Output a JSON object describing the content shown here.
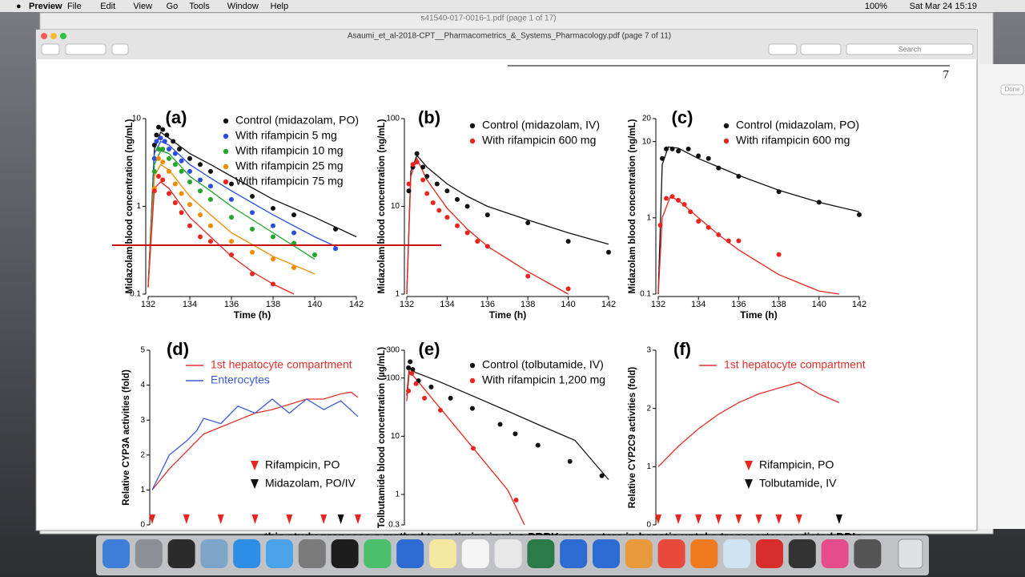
{
  "menu_bar": {
    "app": "Preview",
    "items": [
      "File",
      "Edit",
      "View",
      "Go",
      "Tools",
      "Window",
      "Help"
    ],
    "battery": "100%",
    "clock": "Sat Mar 24  15:19"
  },
  "back_window": {
    "title": "s41540-017-0016-1.pdf (page 1 of 17)"
  },
  "window": {
    "title": "Asaumi_et_al-2018-CPT__Pharmacometrics_&_Systems_Pharmacology.pdf (page 7 of 11)",
    "search": "Search"
  },
  "side_button": "Done",
  "page_number": "7",
  "body_text": "this study proposes a method to optimize in vivo PBPK parameters in hepatic uptake transporter-mediated DDIs",
  "figure": {
    "panels": [
      {
        "label": "(a)",
        "scale": "log",
        "xlim": [
          132,
          142
        ],
        "ylim": [
          0.1,
          10
        ],
        "xticks": [
          132,
          134,
          136,
          138,
          140,
          142
        ],
        "yticks": [
          0.1,
          1,
          10
        ],
        "xlabel": "Time (h)",
        "ylabel": "Midazolam blood concentration (ng/mL)",
        "series": [
          {
            "name": "Control (midazolam, PO)",
            "color": "#111111",
            "marker": "dot",
            "x": [
              132.3,
              132.4,
              132.5,
              132.7,
              132.9,
              133.2,
              133.5,
              134,
              134.5,
              135,
              136,
              137,
              138,
              139,
              141
            ],
            "y": [
              5,
              6.5,
              8,
              7.5,
              6.5,
              5.5,
              4.5,
              3.5,
              3,
              2.5,
              1.8,
              1.3,
              0.95,
              0.8,
              0.55
            ]
          },
          {
            "name": "With rifampicin 5 mg",
            "color": "#2a4de0",
            "marker": "dot",
            "x": [
              132.3,
              132.4,
              132.6,
              132.8,
              133,
              133.3,
              133.6,
              134,
              134.5,
              135,
              136,
              137,
              138,
              139,
              141
            ],
            "y": [
              3.5,
              5.5,
              6,
              5.5,
              4.5,
              4,
              3.3,
              2.5,
              2,
              1.7,
              1.2,
              0.85,
              0.6,
              0.5,
              0.33
            ]
          },
          {
            "name": "With rifampicin 10 mg",
            "color": "#22a52a",
            "marker": "dot",
            "x": [
              132.3,
              132.5,
              132.7,
              133,
              133.3,
              133.6,
              134,
              134.5,
              135,
              136,
              137,
              138,
              139,
              140
            ],
            "y": [
              2.5,
              4.5,
              4.5,
              3.5,
              3,
              2.5,
              1.9,
              1.5,
              1.2,
              0.75,
              0.55,
              0.45,
              0.38,
              0.28
            ]
          },
          {
            "name": "With rifampicin 25 mg",
            "color": "#f08c00",
            "marker": "dot",
            "x": [
              132.3,
              132.5,
              132.7,
              133,
              133.3,
              133.6,
              134,
              134.5,
              135,
              136,
              137,
              138,
              139
            ],
            "y": [
              1.6,
              3.5,
              3.2,
              2.5,
              1.8,
              1.4,
              1.05,
              0.8,
              0.6,
              0.4,
              0.3,
              0.25,
              0.2
            ]
          },
          {
            "name": "With rifampicin 75 mg",
            "color": "#e8261f",
            "marker": "dot",
            "x": [
              132.3,
              132.5,
              132.7,
              133,
              133.3,
              133.6,
              134,
              134.5,
              135,
              136,
              137,
              138
            ],
            "y": [
              1.5,
              2.2,
              2,
              1.4,
              1.1,
              0.85,
              0.6,
              0.45,
              0.4,
              0.28,
              0.17,
              0.13
            ]
          }
        ],
        "fits": [
          {
            "color": "#111111",
            "x": [
              132,
              132.3,
              132.6,
              133,
              134,
              135,
              136,
              138,
              140,
              142
            ],
            "y": [
              0.12,
              4.5,
              7,
              6,
              4,
              3,
              2.2,
              1.2,
              0.75,
              0.45
            ]
          },
          {
            "color": "#2a4de0",
            "x": [
              132,
              132.3,
              132.6,
              133,
              134,
              135,
              136,
              138,
              140,
              141
            ],
            "y": [
              0.12,
              4,
              5.5,
              5,
              3,
              2.1,
              1.5,
              0.8,
              0.45,
              0.35
            ]
          },
          {
            "color": "#22a52a",
            "x": [
              132,
              132.3,
              132.6,
              133,
              134,
              135,
              136,
              138,
              140
            ],
            "y": [
              0.12,
              3,
              4.3,
              4,
              2.2,
              1.5,
              1,
              0.5,
              0.25
            ]
          },
          {
            "color": "#f08c00",
            "x": [
              132,
              132.3,
              132.6,
              133,
              134,
              135,
              136,
              138,
              140
            ],
            "y": [
              0.12,
              2.2,
              3,
              2.6,
              1.3,
              0.8,
              0.5,
              0.27,
              0.17
            ]
          },
          {
            "color": "#e8261f",
            "x": [
              132,
              132.3,
              132.6,
              133,
              134,
              135,
              136,
              137,
              138,
              139
            ],
            "y": [
              0.12,
              1.6,
              1.9,
              1.6,
              0.75,
              0.45,
              0.27,
              0.18,
              0.13,
              0.1
            ]
          }
        ]
      },
      {
        "label": "(b)",
        "scale": "log",
        "xlim": [
          132,
          142
        ],
        "ylim": [
          1,
          100
        ],
        "xticks": [
          132,
          134,
          136,
          138,
          140,
          142
        ],
        "yticks": [
          1,
          10,
          100
        ],
        "xlabel": "Time (h)",
        "ylabel": "Midazolam blood concentration (ng/mL)",
        "series": [
          {
            "name": "Control (midazolam, IV)",
            "color": "#111111",
            "marker": "dot",
            "x": [
              132.1,
              132.3,
              132.5,
              132.8,
              133,
              133.5,
              134,
              134.5,
              135,
              136,
              138,
              140,
              142
            ],
            "y": [
              15,
              28,
              40,
              28,
              22,
              18,
              15,
              12,
              10,
              8,
              6.5,
              4,
              3
            ]
          },
          {
            "name": "With rifampicin 600 mg",
            "color": "#e8261f",
            "marker": "dot",
            "x": [
              132.1,
              132.3,
              132.5,
              132.8,
              133,
              133.3,
              133.6,
              134,
              134.5,
              135,
              135.5,
              136,
              138,
              140
            ],
            "y": [
              18,
              30,
              32,
              20,
              14,
              11,
              9,
              7.5,
              6,
              5,
              4,
              3.5,
              1.6,
              1.15
            ]
          }
        ],
        "fits": [
          {
            "color": "#111111",
            "x": [
              132,
              132.2,
              132.5,
              133,
              134,
              135,
              136,
              138,
              140,
              142
            ],
            "y": [
              1,
              25,
              38,
              28,
              18,
              13,
              10,
              7,
              5,
              3.7
            ]
          },
          {
            "color": "#e8261f",
            "x": [
              132,
              132.2,
              132.5,
              133,
              134,
              135,
              136,
              138,
              140
            ],
            "y": [
              1,
              22,
              35,
              20,
              9.5,
              5.5,
              3.5,
              1.8,
              1
            ]
          }
        ]
      },
      {
        "label": "(c)",
        "scale": "log",
        "xlim": [
          132,
          142
        ],
        "ylim": [
          0.1,
          20
        ],
        "xticks": [
          132,
          134,
          136,
          138,
          140,
          142
        ],
        "yticks": [
          0.1,
          1,
          10,
          20
        ],
        "xlabel": "Time (h)",
        "ylabel": "Midazolam blood concentration (ng/mL)",
        "series": [
          {
            "name": "Control (midazolam, PO)",
            "color": "#111111",
            "marker": "dot",
            "x": [
              132.2,
              132.4,
              132.7,
              133,
              133.5,
              134,
              134.5,
              135,
              136,
              138,
              140,
              142
            ],
            "y": [
              6,
              8,
              8,
              7.5,
              8,
              6.5,
              6,
              4.5,
              3.5,
              2.2,
              1.6,
              1.1
            ]
          },
          {
            "name": "With rifampicin 600 mg",
            "color": "#e8261f",
            "marker": "dot",
            "x": [
              132.1,
              132.4,
              132.7,
              133,
              133.3,
              133.6,
              134,
              134.5,
              135,
              135.5,
              136,
              138
            ],
            "y": [
              0.8,
              1.8,
              1.9,
              1.7,
              1.5,
              1.2,
              0.9,
              0.75,
              0.6,
              0.5,
              0.5,
              0.33
            ]
          }
        ],
        "fits": [
          {
            "color": "#111111",
            "x": [
              132,
              132.2,
              132.5,
              133,
              134,
              136,
              138,
              140,
              142
            ],
            "y": [
              0.1,
              5,
              8.5,
              8.2,
              6,
              3.6,
              2.3,
              1.6,
              1.2
            ]
          },
          {
            "color": "#e8261f",
            "x": [
              132,
              132.2,
              132.6,
              133,
              134,
              135,
              136,
              138,
              140,
              141
            ],
            "y": [
              0.1,
              1,
              1.9,
              1.7,
              1,
              0.6,
              0.38,
              0.18,
              0.11,
              0.1
            ]
          }
        ]
      },
      {
        "label": "(d)",
        "scale": "linear",
        "xlim": [
          0,
          6
        ],
        "ylim": [
          0,
          5
        ],
        "yticks": [
          0,
          1,
          2,
          3,
          4,
          5
        ],
        "ylabel": "Relative CYP3A activities (fold)",
        "series": [
          {
            "name": "1st hepatocyte compartment",
            "color": "#e0322e",
            "marker": "line",
            "x": [
              0,
              0.5,
              1,
              1.5,
              2,
              2.5,
              3,
              3.5,
              4,
              4.5,
              5,
              5.5,
              5.8,
              6
            ],
            "y": [
              1,
              1.6,
              2.1,
              2.6,
              2.8,
              3,
              3.2,
              3.3,
              3.45,
              3.6,
              3.6,
              3.75,
              3.8,
              3.65
            ]
          },
          {
            "name": "Enterocytes",
            "color": "#3c5bd6",
            "marker": "line",
            "x": [
              0,
              0.5,
              1,
              1.3,
              1.5,
              2,
              2.5,
              3,
              3.5,
              4,
              4.5,
              5,
              5.5,
              6
            ],
            "y": [
              1,
              2,
              2.4,
              2.7,
              3.05,
              2.9,
              3.4,
              3.2,
              3.6,
              3.2,
              3.6,
              3.3,
              3.55,
              3.1
            ]
          },
          {
            "name": "Rifampicin, PO",
            "color": "#e8261f",
            "marker": "triangle",
            "x": [
              0,
              1,
              2,
              3,
              4,
              5,
              6
            ]
          },
          {
            "name": "Midazolam, PO/IV",
            "color": "#111111",
            "marker": "triangle",
            "x": [
              5.5
            ]
          }
        ],
        "fits": []
      },
      {
        "label": "(e)",
        "scale": "log",
        "xlim": [
          0,
          24
        ],
        "ylim": [
          0.3,
          300
        ],
        "yticks": [
          0.3,
          1,
          10,
          100,
          300
        ],
        "ylabel": "Tolbutamide blood concentration (µg/mL)",
        "series": [
          {
            "name": "Control (tolbutamide, IV)",
            "color": "#111111",
            "marker": "dot",
            "x": [
              0.2,
              0.4,
              0.7,
              1.4,
              2.9,
              5.2,
              7.8,
              11.1,
              12.9,
              15.6,
              19.4,
              23.2
            ],
            "y": [
              150,
              190,
              140,
              90,
              70,
              45,
              30,
              16,
              11,
              7,
              3.7,
              2.1
            ]
          },
          {
            "name": "With rifampicin 1,200 mg",
            "color": "#e8261f",
            "marker": "dot",
            "x": [
              0.2,
              0.6,
              1.1,
              2.1,
              4,
              7.9,
              13
            ],
            "y": [
              60,
              120,
              80,
              45,
              28,
              6.2,
              0.8
            ]
          }
        ],
        "fits": [
          {
            "color": "#111111",
            "x": [
              0,
              0.3,
              1,
              4,
              8,
              12,
              16,
              20,
              24
            ],
            "y": [
              50,
              150,
              125,
              85,
              48,
              27,
              15,
              8.5,
              1.8
            ]
          },
          {
            "color": "#e8261f",
            "x": [
              0,
              0.3,
              1,
              4,
              8,
              12,
              14
            ],
            "y": [
              40,
              130,
              100,
              30,
              6,
              1.2,
              0.3
            ]
          }
        ]
      },
      {
        "label": "(f)",
        "scale": "linear",
        "xlim": [
          0,
          10
        ],
        "ylim": [
          0,
          3
        ],
        "yticks": [
          0,
          1,
          2,
          3
        ],
        "ylabel": "Relative CYP2C9 activities (fold)",
        "series": [
          {
            "name": "1st hepatocyte compartment",
            "color": "#e0322e",
            "marker": "line",
            "x": [
              0,
              1,
              2,
              3,
              4,
              5,
              6,
              7,
              7.5,
              8,
              9
            ],
            "y": [
              1,
              1.35,
              1.65,
              1.9,
              2.1,
              2.25,
              2.35,
              2.45,
              2.35,
              2.25,
              2.1
            ]
          },
          {
            "name": "Rifampicin, PO",
            "color": "#e8261f",
            "marker": "triangle",
            "x": [
              0,
              1,
              2,
              3,
              4,
              5,
              6,
              7
            ]
          },
          {
            "name": "Tolbutamide, IV",
            "color": "#111111",
            "marker": "triangle",
            "x": [
              9
            ]
          }
        ],
        "fits": []
      }
    ]
  }
}
